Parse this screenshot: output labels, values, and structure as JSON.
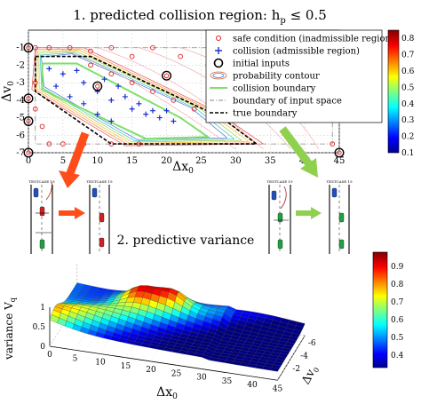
{
  "chart_data": [
    {
      "type": "scatter",
      "title": "1. predicted collision region: h",
      "title_sub": "p",
      "title_tail": " ≤ 0.5",
      "xlabel": "Δx",
      "xlabel_sub": "0",
      "ylabel": "Δv",
      "ylabel_sub": "0",
      "xlim": [
        0,
        45
      ],
      "ylim": [
        -7,
        0
      ],
      "x_ticks": [
        "0",
        "5",
        "10",
        "15",
        "20",
        "25",
        "30",
        "35",
        "40",
        "45"
      ],
      "y_ticks": [
        "-1",
        "-2",
        "-3",
        "-4",
        "-5",
        "-6",
        "-7"
      ],
      "legend": [
        {
          "label": "safe condition (inadmissible region)",
          "marker": "o-red"
        },
        {
          "label": "collision (admissible region)",
          "marker": "plus-blue"
        },
        {
          "label": "initial inputs",
          "marker": "o-black"
        },
        {
          "label": "probability contour",
          "marker": "contour"
        },
        {
          "label": "collision boundary",
          "marker": "green-line"
        },
        {
          "label": "boundary of input space",
          "marker": "dashdot-gray"
        },
        {
          "label": "true boundary",
          "marker": "dashed-black"
        }
      ],
      "colorbar": {
        "ticks": [
          "0.8",
          "0.7",
          "0.6",
          "0.5",
          "0.4",
          "0.3",
          "0.2",
          "0.1"
        ],
        "range": [
          0.1,
          0.85
        ]
      },
      "safe_points": [
        [
          1,
          -1
        ],
        [
          3,
          -1
        ],
        [
          6,
          -1
        ],
        [
          9,
          -1.2
        ],
        [
          12,
          -1
        ],
        [
          15,
          -1.5
        ],
        [
          18,
          -1
        ],
        [
          22,
          -1.5
        ],
        [
          26,
          -2
        ],
        [
          29,
          -2.5
        ],
        [
          33,
          -3
        ],
        [
          37,
          -3.5
        ],
        [
          41,
          -4
        ],
        [
          44,
          -5
        ],
        [
          44,
          -6.5
        ],
        [
          9,
          -2
        ],
        [
          12,
          -2.5
        ],
        [
          15,
          -3
        ],
        [
          18,
          -3.5
        ],
        [
          21,
          -4
        ],
        [
          24,
          -4.5
        ],
        [
          27,
          -5
        ],
        [
          1,
          -3
        ],
        [
          1,
          -4.5
        ],
        [
          2,
          -5.5
        ],
        [
          3,
          -6.5
        ],
        [
          5,
          -6.5
        ],
        [
          8,
          -6.5
        ],
        [
          12,
          -6.5
        ],
        [
          16,
          -6.5
        ]
      ],
      "collision_points": [
        [
          3,
          -2.2
        ],
        [
          5,
          -2.5
        ],
        [
          7,
          -2.3
        ],
        [
          8,
          -3
        ],
        [
          10,
          -3.5
        ],
        [
          12,
          -4
        ],
        [
          14,
          -3.8
        ],
        [
          15,
          -4.5
        ],
        [
          16,
          -4.2
        ],
        [
          17,
          -4.8
        ],
        [
          18,
          -4.6
        ],
        [
          19,
          -5
        ],
        [
          20,
          -4.6
        ],
        [
          21,
          -5.2
        ],
        [
          6,
          -3.8
        ],
        [
          8,
          -4.2
        ],
        [
          10,
          -4.8
        ],
        [
          12,
          -5.2
        ],
        [
          4,
          -3.2
        ],
        [
          13,
          -3.2
        ],
        [
          11,
          -2.8
        ]
      ],
      "initial_inputs": [
        [
          0,
          -1
        ],
        [
          0,
          -7
        ],
        [
          45,
          -7
        ],
        [
          10,
          -3.2
        ],
        [
          20,
          -2.6
        ],
        [
          45,
          -1
        ],
        [
          0,
          -3.9
        ],
        [
          0,
          -5.2
        ]
      ],
      "true_boundary": [
        [
          1,
          -1.5
        ],
        [
          2,
          -1.5
        ],
        [
          9,
          -1.5
        ],
        [
          28,
          -5
        ],
        [
          33,
          -6.5
        ],
        [
          12,
          -6.5
        ],
        [
          1,
          -3.5
        ],
        [
          1,
          -1.5
        ]
      ],
      "collision_boundary": [
        [
          2,
          -1.9
        ],
        [
          7,
          -1.9
        ],
        [
          22,
          -5
        ],
        [
          26,
          -6.1
        ],
        [
          17,
          -6.2
        ],
        [
          2,
          -3.4
        ],
        [
          2,
          -1.9
        ]
      ]
    },
    {
      "type": "surface",
      "title": "2. predictive variance",
      "xlabel": "Δx",
      "xlabel_sub": "0",
      "ylabel": "Δv",
      "ylabel_sub": "0",
      "zlabel": "variance V",
      "zlabel_sub": "q",
      "x_ticks": [
        "0",
        "5",
        "10",
        "15",
        "20",
        "25",
        "30",
        "35",
        "40",
        "45"
      ],
      "y_ticks": [
        "-2",
        "-4",
        "-6"
      ],
      "z_ticks": [
        "1",
        "0.5",
        "0"
      ],
      "colorbar": {
        "ticks": [
          "0.9",
          "0.8",
          "0.7",
          "0.6",
          "0.5",
          "0.4"
        ],
        "range": [
          0.33,
          0.98
        ]
      }
    }
  ],
  "panels": {
    "left_test_case": "TESTCASE 19",
    "right_test_case": "TESTCASE 19"
  }
}
